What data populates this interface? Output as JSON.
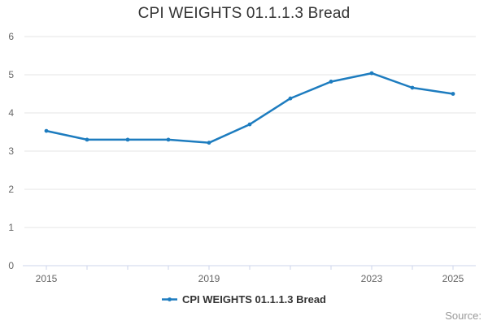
{
  "title": "CPI WEIGHTS 01.1.1.3 Bread",
  "legend": {
    "label": "CPI WEIGHTS 01.1.1.3 Bread",
    "marker_icon": "line-with-dot-icon"
  },
  "source_label": "Source:",
  "colors": {
    "line": "#1d7cbf",
    "marker": "#1d7cbf",
    "grid": "#e6e6e6",
    "axis_line": "#ccd6eb",
    "tick_label": "#666666",
    "title_text": "#333333",
    "legend_text": "#333333",
    "source_text": "#999999",
    "background": "#ffffff"
  },
  "chart_data": {
    "type": "line",
    "title": "CPI WEIGHTS 01.1.1.3 Bread",
    "xlabel": "",
    "ylabel": "",
    "x": [
      2015,
      2016,
      2017,
      2018,
      2019,
      2020,
      2021,
      2022,
      2023,
      2024,
      2025
    ],
    "series": [
      {
        "name": "CPI WEIGHTS 01.1.1.3 Bread",
        "values": [
          3.53,
          3.3,
          3.3,
          3.3,
          3.22,
          3.7,
          4.38,
          4.82,
          5.04,
          4.66,
          4.5
        ]
      }
    ],
    "ylim": [
      0,
      6
    ],
    "y_ticks": [
      0,
      1,
      2,
      3,
      4,
      5,
      6
    ],
    "x_ticks": [
      2015,
      2016,
      2017,
      2018,
      2019,
      2020,
      2021,
      2022,
      2023,
      2024,
      2025
    ],
    "x_tick_labels_shown": [
      "2015",
      "2019",
      "2023",
      "2025"
    ],
    "grid": true,
    "legend_position": "bottom-center",
    "marker_style": "circle"
  }
}
